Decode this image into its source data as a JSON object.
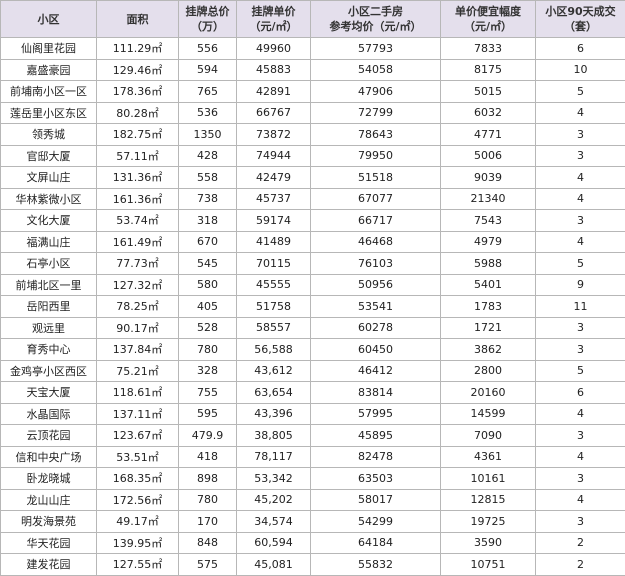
{
  "table": {
    "header": [
      [
        "小区"
      ],
      [
        "面积"
      ],
      [
        "挂牌总价",
        "（万）"
      ],
      [
        "挂牌单价",
        "（元/㎡）"
      ],
      [
        "小区二手房",
        "参考均价（元/㎡）"
      ],
      [
        "单价便宜幅度",
        "（元/㎡）"
      ],
      [
        "小区90天成交",
        "（套）"
      ]
    ],
    "rows": [
      [
        "仙阁里花园",
        "111.29㎡",
        "556",
        "49960",
        "57793",
        "7833",
        "6"
      ],
      [
        "嘉盛豪园",
        "129.46㎡",
        "594",
        "45883",
        "54058",
        "8175",
        "10"
      ],
      [
        "前埔南小区一区",
        "178.36㎡",
        "765",
        "42891",
        "47906",
        "5015",
        "5"
      ],
      [
        "莲岳里小区东区",
        "80.28㎡",
        "536",
        "66767",
        "72799",
        "6032",
        "4"
      ],
      [
        "领秀城",
        "182.75㎡",
        "1350",
        "73872",
        "78643",
        "4771",
        "3"
      ],
      [
        "官邸大厦",
        "57.11㎡",
        "428",
        "74944",
        "79950",
        "5006",
        "3"
      ],
      [
        "文屏山庄",
        "131.36㎡",
        "558",
        "42479",
        "51518",
        "9039",
        "4"
      ],
      [
        "华林紫微小区",
        "161.36㎡",
        "738",
        "45737",
        "67077",
        "21340",
        "4"
      ],
      [
        "文化大厦",
        "53.74㎡",
        "318",
        "59174",
        "66717",
        "7543",
        "3"
      ],
      [
        "福满山庄",
        "161.49㎡",
        "670",
        "41489",
        "46468",
        "4979",
        "4"
      ],
      [
        "石亭小区",
        "77.73㎡",
        "545",
        "70115",
        "76103",
        "5988",
        "5"
      ],
      [
        "前埔北区一里",
        "127.32㎡",
        "580",
        "45555",
        "50956",
        "5401",
        "9"
      ],
      [
        "岳阳西里",
        "78.25㎡",
        "405",
        "51758",
        "53541",
        "1783",
        "11"
      ],
      [
        "观远里",
        "90.17㎡",
        "528",
        "58557",
        "60278",
        "1721",
        "3"
      ],
      [
        "育秀中心",
        "137.84㎡",
        "780",
        "56,588",
        "60450",
        "3862",
        "3"
      ],
      [
        "金鸡亭小区西区",
        "75.21㎡",
        "328",
        "43,612",
        "46412",
        "2800",
        "5"
      ],
      [
        "天宝大厦",
        "118.61㎡",
        "755",
        "63,654",
        "83814",
        "20160",
        "6"
      ],
      [
        "水晶国际",
        "137.11㎡",
        "595",
        "43,396",
        "57995",
        "14599",
        "4"
      ],
      [
        "云顶花园",
        "123.67㎡",
        "479.9",
        "38,805",
        "45895",
        "7090",
        "3"
      ],
      [
        "信和中央广场",
        "53.51㎡",
        "418",
        "78,117",
        "82478",
        "4361",
        "4"
      ],
      [
        "卧龙晓城",
        "168.35㎡",
        "898",
        "53,342",
        "63503",
        "10161",
        "3"
      ],
      [
        "龙山山庄",
        "172.56㎡",
        "780",
        "45,202",
        "58017",
        "12815",
        "4"
      ],
      [
        "明发海景苑",
        "49.17㎡",
        "170",
        "34,574",
        "54299",
        "19725",
        "3"
      ],
      [
        "华天花园",
        "139.95㎡",
        "848",
        "60,594",
        "64184",
        "3590",
        "2"
      ],
      [
        "建发花园",
        "127.55㎡",
        "575",
        "45,081",
        "55832",
        "10751",
        "2"
      ]
    ]
  }
}
